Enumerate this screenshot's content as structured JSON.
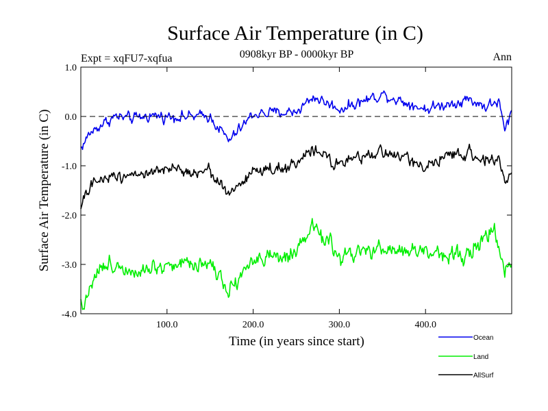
{
  "chart_data": {
    "type": "line",
    "title": "Surface Air Temperature (in C)",
    "experiment_label": "Expt = xqFU7-xqfua",
    "period_label": "0908kyr BP - 0000kyr BP",
    "season_label": "Ann",
    "xlabel": "Time (in years since start)",
    "ylabel": "Surface Air Temperature (in C)",
    "xlim": [
      0,
      500
    ],
    "ylim": [
      -4.0,
      1.0
    ],
    "x_ticks": [
      100,
      200,
      300,
      400
    ],
    "x_tick_labels": [
      "100.0",
      "200.0",
      "300.0",
      "400.0"
    ],
    "y_ticks": [
      1.0,
      0.0,
      -1.0,
      -2.0,
      -3.0,
      -4.0
    ],
    "y_tick_labels": [
      "1.0",
      "0.0",
      "-1.0",
      "-2.0",
      "-3.0",
      "-4.0"
    ],
    "reference_line": 0.0,
    "legend_position": "bottom-right",
    "n_points": 500,
    "series": [
      {
        "name": "Ocean",
        "color": "#0000ee",
        "keypoints": {
          "x": [
            0,
            10,
            25,
            40,
            60,
            80,
            100,
            150,
            172,
            200,
            250,
            270,
            300,
            350,
            400,
            450,
            470,
            485,
            492,
            500
          ],
          "y": [
            -0.65,
            -0.35,
            -0.15,
            0.0,
            -0.05,
            0.02,
            0.0,
            0.0,
            -0.5,
            0.05,
            0.1,
            0.4,
            0.15,
            0.45,
            0.15,
            0.35,
            0.2,
            0.3,
            -0.3,
            0.1
          ]
        },
        "noise_amplitude": 0.11
      },
      {
        "name": "Land",
        "color": "#00ee00",
        "keypoints": {
          "x": [
            0,
            5,
            10,
            20,
            40,
            60,
            100,
            150,
            172,
            200,
            250,
            270,
            300,
            350,
            400,
            450,
            480,
            492,
            500
          ],
          "y": [
            -3.7,
            -3.85,
            -3.4,
            -3.1,
            -3.0,
            -3.1,
            -3.0,
            -2.95,
            -3.5,
            -2.9,
            -2.85,
            -2.2,
            -2.85,
            -2.7,
            -2.75,
            -2.8,
            -2.3,
            -3.2,
            -2.9
          ]
        },
        "noise_amplitude": 0.17
      },
      {
        "name": "AllSurf",
        "color": "#000000",
        "keypoints": {
          "x": [
            0,
            10,
            25,
            40,
            60,
            80,
            100,
            150,
            172,
            200,
            250,
            270,
            300,
            350,
            400,
            450,
            470,
            485,
            492,
            500
          ],
          "y": [
            -1.85,
            -1.45,
            -1.25,
            -1.2,
            -1.15,
            -1.15,
            -1.1,
            -1.1,
            -1.6,
            -1.1,
            -1.0,
            -0.65,
            -1.0,
            -0.7,
            -1.0,
            -0.7,
            -0.9,
            -0.85,
            -1.4,
            -1.05
          ]
        },
        "noise_amplitude": 0.12
      }
    ]
  }
}
